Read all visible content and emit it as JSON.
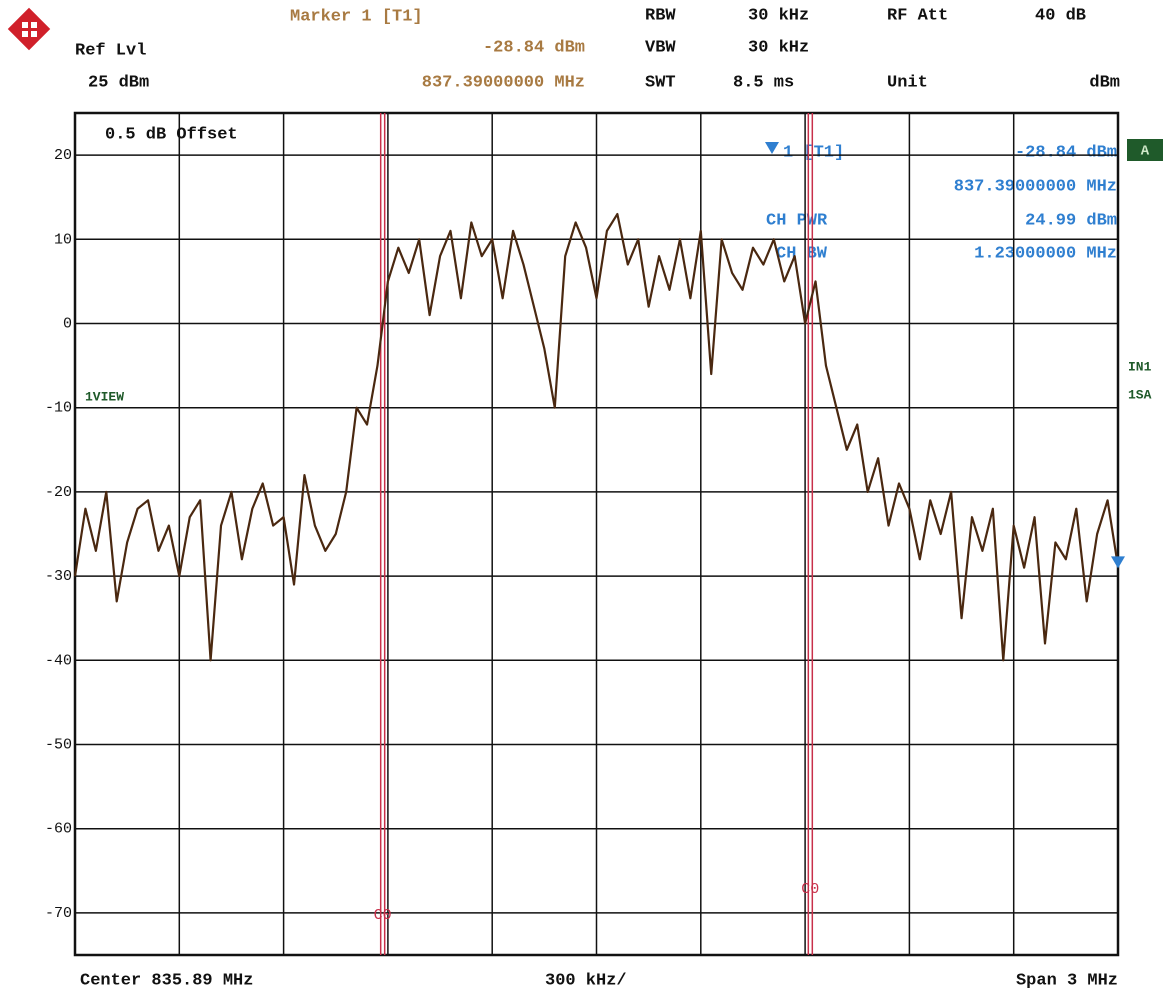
{
  "chart_data": {
    "type": "line",
    "header": {
      "marker_title": "Marker 1 [T1]",
      "ref_lvl_label": "Ref Lvl",
      "ref_lvl": "25 dBm",
      "rbw_label": "RBW",
      "rbw": "30 kHz",
      "vbw_label": "VBW",
      "vbw": "30 kHz",
      "swt_label": "SWT",
      "swt": "8.5 ms",
      "rf_att_label": "RF Att",
      "rf_att": "40 dB",
      "unit_label": "Unit",
      "unit": "dBm"
    },
    "marker": {
      "label": "1 [T1]",
      "x": 837.39,
      "x_label": "837.39000000 MHz",
      "value": -28.84,
      "value_label": "-28.84 dBm",
      "color": "#2f7fd0"
    },
    "offset_note": "0.5 dB Offset",
    "ch_pwr_label": "CH PWR",
    "ch_pwr": "24.99 dBm",
    "ch_bw_label": "CH BW",
    "ch_bw": "1.23000000 MHz",
    "trace_badge": "A",
    "view_label": "1VIEW",
    "input_labels": [
      "IN1",
      "1SA"
    ],
    "channel_lines": [
      {
        "x": 835.275,
        "label": "C0"
      },
      {
        "x": 836.505,
        "label": "C0"
      }
    ],
    "channel_color": "#c8304a",
    "footer": {
      "center": "Center 835.89 MHz",
      "per_div": "300 kHz/",
      "span": "Span 3 MHz"
    },
    "xlim": [
      834.39,
      837.39
    ],
    "ylim": [
      -75,
      25
    ],
    "yticks": [
      20,
      10,
      0,
      -10,
      -20,
      -30,
      -40,
      -50,
      -60,
      -70
    ],
    "grid": true,
    "series": [
      {
        "color": "#4a2810",
        "x": [
          834.39,
          834.42,
          834.45,
          834.48,
          834.51,
          834.54,
          834.57,
          834.6,
          834.63,
          834.66,
          834.69,
          834.72,
          834.75,
          834.78,
          834.81,
          834.84,
          834.87,
          834.9,
          834.93,
          834.96,
          834.99,
          835.02,
          835.05,
          835.08,
          835.11,
          835.14,
          835.17,
          835.2,
          835.23,
          835.26,
          835.29,
          835.32,
          835.35,
          835.38,
          835.41,
          835.44,
          835.47,
          835.5,
          835.53,
          835.56,
          835.59,
          835.62,
          835.65,
          835.68,
          835.71,
          835.74,
          835.77,
          835.8,
          835.83,
          835.86,
          835.89,
          835.92,
          835.95,
          835.98,
          836.01,
          836.04,
          836.07,
          836.1,
          836.13,
          836.16,
          836.19,
          836.22,
          836.25,
          836.28,
          836.31,
          836.34,
          836.37,
          836.4,
          836.43,
          836.46,
          836.49,
          836.52,
          836.55,
          836.58,
          836.61,
          836.64,
          836.67,
          836.7,
          836.73,
          836.76,
          836.79,
          836.82,
          836.85,
          836.88,
          836.91,
          836.94,
          836.97,
          837.0,
          837.03,
          837.06,
          837.09,
          837.12,
          837.15,
          837.18,
          837.21,
          837.24,
          837.27,
          837.3,
          837.33,
          837.36,
          837.39
        ],
        "values": [
          -30,
          -22,
          -27,
          -20,
          -33,
          -26,
          -22,
          -21,
          -27,
          -24,
          -30,
          -23,
          -21,
          -40,
          -24,
          -20,
          -28,
          -22,
          -19,
          -24,
          -23,
          -31,
          -18,
          -24,
          -27,
          -25,
          -20,
          -10,
          -12,
          -5,
          5,
          9,
          6,
          10,
          1,
          8,
          11,
          3,
          12,
          8,
          10,
          3,
          11,
          7,
          2,
          -3,
          -10,
          8,
          12,
          9,
          3,
          11,
          13,
          7,
          10,
          2,
          8,
          4,
          10,
          3,
          11,
          -6,
          10,
          6,
          4,
          9,
          7,
          10,
          5,
          8,
          0,
          5,
          -5,
          -10,
          -15,
          -12,
          -20,
          -16,
          -24,
          -19,
          -22,
          -28,
          -21,
          -25,
          -20,
          -35,
          -23,
          -27,
          -22,
          -40,
          -24,
          -29,
          -23,
          -38,
          -26,
          -28,
          -22,
          -33,
          -25,
          -21,
          -28.84
        ]
      }
    ]
  }
}
